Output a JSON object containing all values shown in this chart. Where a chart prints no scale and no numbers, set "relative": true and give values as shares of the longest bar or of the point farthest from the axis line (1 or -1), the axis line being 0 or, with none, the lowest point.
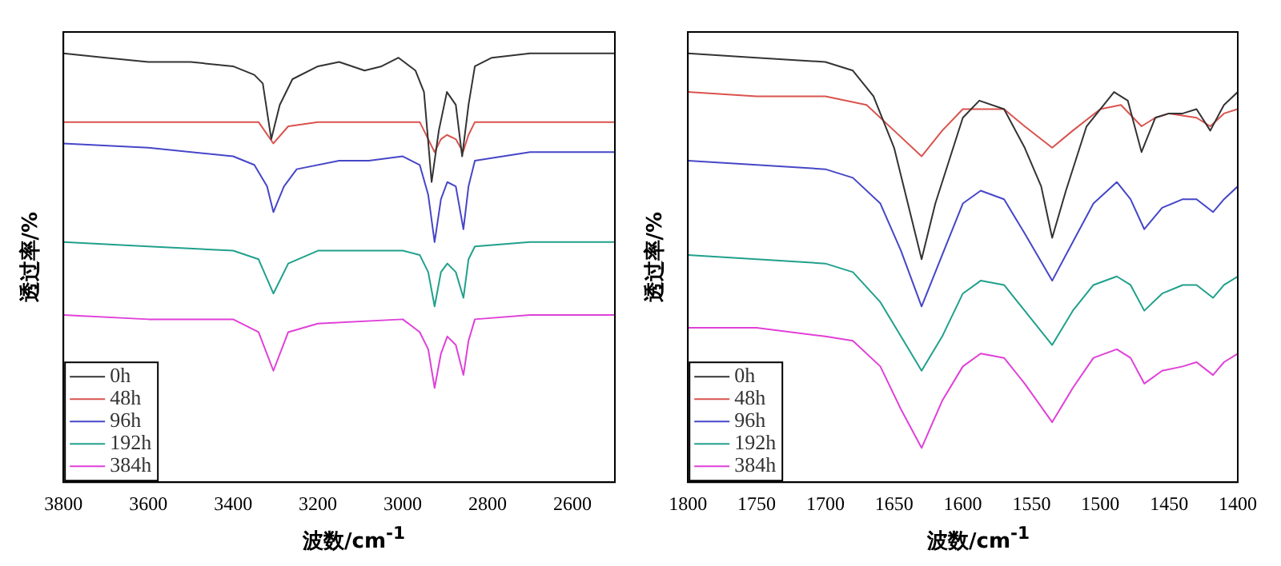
{
  "chart_data": [
    {
      "type": "line",
      "xlabel": "波数/cm$^{-1}$",
      "ylabel": "透过率/%",
      "xlim": [
        3800,
        2500
      ],
      "xticks": [
        3800,
        3600,
        3400,
        3200,
        3000,
        2800,
        2600
      ],
      "relative": true,
      "legend": "bottom left",
      "series": [
        {
          "name": "0h",
          "color": "#333333",
          "x": [
            3800,
            3700,
            3600,
            3500,
            3400,
            3350,
            3330,
            3310,
            3290,
            3260,
            3200,
            3150,
            3090,
            3050,
            3010,
            2970,
            2950,
            2932,
            2915,
            2896,
            2875,
            2860,
            2845,
            2830,
            2790,
            2700,
            2600,
            2500
          ],
          "values": [
            1.0,
            0.99,
            0.98,
            0.98,
            0.97,
            0.95,
            0.93,
            0.8,
            0.88,
            0.94,
            0.97,
            0.98,
            0.96,
            0.97,
            0.99,
            0.96,
            0.91,
            0.7,
            0.82,
            0.91,
            0.88,
            0.76,
            0.88,
            0.97,
            0.99,
            1.0,
            1.0,
            1.0
          ]
        },
        {
          "name": "48h",
          "color": "#d9534f",
          "x": [
            3800,
            3600,
            3400,
            3340,
            3305,
            3270,
            3200,
            3000,
            2960,
            2940,
            2925,
            2910,
            2896,
            2875,
            2858,
            2845,
            2830,
            2700,
            2500
          ],
          "values": [
            0.84,
            0.84,
            0.84,
            0.84,
            0.79,
            0.83,
            0.84,
            0.84,
            0.84,
            0.8,
            0.77,
            0.8,
            0.81,
            0.8,
            0.77,
            0.81,
            0.84,
            0.84,
            0.84
          ]
        },
        {
          "name": "96h",
          "color": "#4646c8",
          "x": [
            3800,
            3600,
            3400,
            3350,
            3320,
            3305,
            3280,
            3250,
            3150,
            3080,
            3000,
            2960,
            2940,
            2925,
            2910,
            2895,
            2875,
            2857,
            2845,
            2830,
            2700,
            2500
          ],
          "values": [
            0.79,
            0.78,
            0.76,
            0.74,
            0.69,
            0.63,
            0.69,
            0.73,
            0.75,
            0.75,
            0.76,
            0.74,
            0.67,
            0.56,
            0.66,
            0.7,
            0.69,
            0.59,
            0.69,
            0.75,
            0.77,
            0.77
          ]
        },
        {
          "name": "192h",
          "color": "#20a08c",
          "x": [
            3800,
            3600,
            3400,
            3340,
            3305,
            3270,
            3200,
            3000,
            2960,
            2940,
            2925,
            2910,
            2895,
            2875,
            2857,
            2845,
            2830,
            2700,
            2500
          ],
          "values": [
            0.56,
            0.55,
            0.54,
            0.52,
            0.44,
            0.51,
            0.54,
            0.54,
            0.53,
            0.49,
            0.41,
            0.49,
            0.51,
            0.49,
            0.43,
            0.52,
            0.55,
            0.56,
            0.56
          ]
        },
        {
          "name": "384h",
          "color": "#e040d8",
          "x": [
            3800,
            3600,
            3400,
            3340,
            3305,
            3270,
            3200,
            3000,
            2960,
            2940,
            2925,
            2910,
            2895,
            2875,
            2857,
            2845,
            2830,
            2700,
            2500
          ],
          "values": [
            0.39,
            0.38,
            0.38,
            0.35,
            0.26,
            0.35,
            0.37,
            0.38,
            0.35,
            0.31,
            0.22,
            0.3,
            0.34,
            0.32,
            0.25,
            0.33,
            0.38,
            0.39,
            0.39
          ]
        }
      ]
    },
    {
      "type": "line",
      "xlabel": "波数/cm$^{-1}$",
      "ylabel": "透过率/%",
      "xlim": [
        1800,
        1400
      ],
      "xticks": [
        1800,
        1750,
        1700,
        1650,
        1600,
        1550,
        1500,
        1450,
        1400
      ],
      "relative": true,
      "legend": "bottom left",
      "series": [
        {
          "name": "0h",
          "color": "#333333",
          "x": [
            1800,
            1750,
            1700,
            1680,
            1665,
            1650,
            1640,
            1630,
            1620,
            1600,
            1588,
            1570,
            1555,
            1543,
            1535,
            1525,
            1510,
            1490,
            1480,
            1470,
            1460,
            1450,
            1440,
            1430,
            1420,
            1410,
            1400
          ],
          "values": [
            1.0,
            0.99,
            0.98,
            0.96,
            0.9,
            0.78,
            0.65,
            0.52,
            0.65,
            0.85,
            0.89,
            0.87,
            0.78,
            0.69,
            0.57,
            0.68,
            0.83,
            0.91,
            0.89,
            0.77,
            0.85,
            0.86,
            0.86,
            0.87,
            0.82,
            0.88,
            0.91
          ]
        },
        {
          "name": "48h",
          "color": "#d9534f",
          "x": [
            1800,
            1750,
            1700,
            1670,
            1650,
            1630,
            1615,
            1600,
            1590,
            1570,
            1555,
            1535,
            1520,
            1500,
            1485,
            1470,
            1460,
            1450,
            1430,
            1420,
            1410,
            1400
          ],
          "values": [
            0.91,
            0.9,
            0.9,
            0.88,
            0.82,
            0.76,
            0.82,
            0.87,
            0.87,
            0.87,
            0.83,
            0.78,
            0.82,
            0.87,
            0.88,
            0.83,
            0.85,
            0.86,
            0.85,
            0.83,
            0.86,
            0.87
          ]
        },
        {
          "name": "96h",
          "color": "#4646c8",
          "x": [
            1800,
            1750,
            1700,
            1680,
            1660,
            1645,
            1630,
            1615,
            1600,
            1587,
            1570,
            1555,
            1535,
            1520,
            1505,
            1488,
            1478,
            1468,
            1455,
            1440,
            1430,
            1418,
            1410,
            1400
          ],
          "values": [
            0.75,
            0.74,
            0.73,
            0.71,
            0.65,
            0.54,
            0.41,
            0.53,
            0.65,
            0.68,
            0.66,
            0.58,
            0.47,
            0.56,
            0.65,
            0.7,
            0.66,
            0.59,
            0.64,
            0.66,
            0.66,
            0.63,
            0.66,
            0.69
          ]
        },
        {
          "name": "192h",
          "color": "#20a08c",
          "x": [
            1800,
            1750,
            1700,
            1680,
            1660,
            1645,
            1630,
            1615,
            1600,
            1587,
            1570,
            1555,
            1535,
            1520,
            1505,
            1488,
            1478,
            1468,
            1455,
            1440,
            1430,
            1418,
            1410,
            1400
          ],
          "values": [
            0.53,
            0.52,
            0.51,
            0.49,
            0.42,
            0.34,
            0.26,
            0.34,
            0.44,
            0.47,
            0.46,
            0.4,
            0.32,
            0.4,
            0.46,
            0.48,
            0.46,
            0.4,
            0.44,
            0.46,
            0.46,
            0.43,
            0.46,
            0.48
          ]
        },
        {
          "name": "384h",
          "color": "#e040d8",
          "x": [
            1800,
            1750,
            1700,
            1680,
            1660,
            1645,
            1630,
            1615,
            1600,
            1587,
            1570,
            1555,
            1535,
            1520,
            1505,
            1488,
            1478,
            1468,
            1455,
            1440,
            1430,
            1418,
            1410,
            1400
          ],
          "values": [
            0.36,
            0.36,
            0.34,
            0.33,
            0.27,
            0.17,
            0.08,
            0.19,
            0.27,
            0.3,
            0.29,
            0.23,
            0.14,
            0.22,
            0.29,
            0.31,
            0.29,
            0.23,
            0.26,
            0.27,
            0.28,
            0.25,
            0.28,
            0.3
          ]
        }
      ]
    }
  ]
}
